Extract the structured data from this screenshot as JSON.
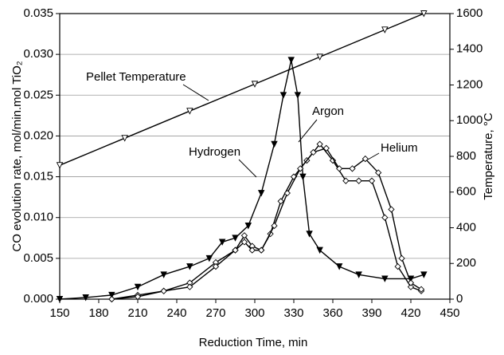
{
  "chart_data": {
    "type": "line",
    "xlabel": "Reduction Time, min",
    "ylabel": "CO evolution rate, mol/min.mol TiO₂",
    "y2label": "Temperature, °C",
    "xlim": [
      150,
      450
    ],
    "xticks": [
      150,
      180,
      210,
      240,
      270,
      300,
      330,
      360,
      390,
      420,
      450
    ],
    "ylim": [
      0,
      0.035
    ],
    "yticks": [
      {
        "value": 0,
        "label": "0.000"
      },
      {
        "value": 0.005,
        "label": "0.005"
      },
      {
        "value": 0.01,
        "label": "0.010"
      },
      {
        "value": 0.015,
        "label": "0.015"
      },
      {
        "value": 0.02,
        "label": "0.020"
      },
      {
        "value": 0.025,
        "label": "0.025"
      },
      {
        "value": 0.03,
        "label": "0.030"
      },
      {
        "value": 0.035,
        "label": "0.035"
      }
    ],
    "y2lim": [
      0,
      1600
    ],
    "y2ticks": [
      0,
      200,
      400,
      600,
      800,
      1000,
      1200,
      1400,
      1600
    ],
    "grid": true,
    "series": [
      {
        "name": "Hydrogen",
        "color": "#000000",
        "marker": "triangle-filled",
        "x": [
          150,
          170,
          190,
          210,
          230,
          250,
          265,
          275,
          285,
          295,
          305,
          315,
          322,
          328,
          333,
          337,
          342,
          350,
          365,
          380,
          400,
          420,
          430
        ],
        "values": [
          0,
          0.0002,
          0.0005,
          0.0015,
          0.003,
          0.004,
          0.005,
          0.007,
          0.0075,
          0.009,
          0.013,
          0.019,
          0.025,
          0.0293,
          0.025,
          0.015,
          0.008,
          0.006,
          0.004,
          0.003,
          0.0025,
          0.0025,
          0.003
        ]
      },
      {
        "name": "Argon",
        "color": "#000000",
        "marker": "diamond-open",
        "x": [
          190,
          210,
          230,
          250,
          270,
          285,
          292,
          298,
          305,
          312,
          320,
          330,
          340,
          350,
          360,
          370,
          380,
          390,
          400,
          410,
          420,
          428
        ],
        "values": [
          0,
          0.0005,
          0.001,
          0.002,
          0.0045,
          0.006,
          0.0078,
          0.0065,
          0.006,
          0.008,
          0.012,
          0.015,
          0.017,
          0.019,
          0.017,
          0.0145,
          0.0145,
          0.0145,
          0.01,
          0.004,
          0.0015,
          0.001
        ]
      },
      {
        "name": "Helium",
        "color": "#000000",
        "marker": "diamond-open",
        "x": [
          190,
          210,
          230,
          250,
          270,
          285,
          292,
          298,
          305,
          315,
          325,
          335,
          345,
          355,
          365,
          375,
          385,
          395,
          405,
          413,
          420,
          428
        ],
        "values": [
          0,
          0.0003,
          0.001,
          0.0015,
          0.004,
          0.006,
          0.007,
          0.006,
          0.006,
          0.009,
          0.013,
          0.016,
          0.018,
          0.0185,
          0.016,
          0.016,
          0.0172,
          0.0155,
          0.011,
          0.005,
          0.002,
          0.0012
        ]
      },
      {
        "name": "Pellet Temperature",
        "color": "#000000",
        "marker": "triangle-open",
        "axis": "y2",
        "x": [
          150,
          200,
          250,
          300,
          350,
          400,
          430
        ],
        "values": [
          750,
          902,
          1054,
          1205,
          1357,
          1509,
          1600
        ]
      }
    ]
  }
}
